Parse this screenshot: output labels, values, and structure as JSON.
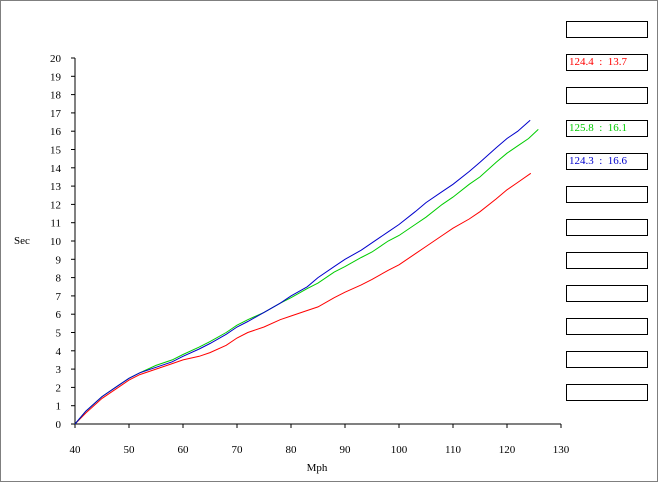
{
  "chart_data": {
    "type": "line",
    "title": "",
    "xlabel": "Mph",
    "ylabel": "Sec",
    "xlim": [
      40,
      130
    ],
    "ylim": [
      0,
      20
    ],
    "xticks": [
      40,
      50,
      60,
      70,
      80,
      90,
      100,
      110,
      120,
      130
    ],
    "yticks": [
      0,
      1,
      2,
      3,
      4,
      5,
      6,
      7,
      8,
      9,
      10,
      11,
      12,
      13,
      14,
      15,
      16,
      17,
      18,
      19,
      20
    ],
    "grid": false,
    "series": [
      {
        "color": "#ff0000",
        "x": [
          40,
          42,
          45,
          48,
          50,
          52,
          55,
          58,
          60,
          63,
          65,
          68,
          70,
          72,
          75,
          78,
          80,
          83,
          85,
          88,
          90,
          93,
          95,
          98,
          100,
          103,
          105,
          108,
          110,
          113,
          115,
          118,
          120,
          122,
          124.4
        ],
        "y": [
          0,
          0.6,
          1.4,
          2.0,
          2.4,
          2.7,
          3.0,
          3.3,
          3.5,
          3.7,
          3.9,
          4.3,
          4.7,
          5.0,
          5.3,
          5.7,
          5.9,
          6.2,
          6.4,
          6.9,
          7.2,
          7.6,
          7.9,
          8.4,
          8.7,
          9.3,
          9.7,
          10.3,
          10.7,
          11.2,
          11.6,
          12.3,
          12.8,
          13.2,
          13.7
        ]
      },
      {
        "color": "#00cc00",
        "x": [
          40,
          42,
          45,
          48,
          50,
          52,
          55,
          58,
          60,
          63,
          65,
          68,
          70,
          72,
          75,
          78,
          80,
          83,
          85,
          88,
          90,
          93,
          95,
          98,
          100,
          103,
          105,
          108,
          110,
          113,
          115,
          118,
          120,
          122,
          124,
          125.8
        ],
        "y": [
          0,
          0.7,
          1.5,
          2.1,
          2.5,
          2.8,
          3.2,
          3.5,
          3.8,
          4.2,
          4.5,
          5.0,
          5.4,
          5.7,
          6.1,
          6.6,
          6.9,
          7.4,
          7.7,
          8.3,
          8.6,
          9.1,
          9.4,
          10.0,
          10.3,
          10.9,
          11.3,
          12.0,
          12.4,
          13.1,
          13.5,
          14.3,
          14.8,
          15.2,
          15.6,
          16.1
        ]
      },
      {
        "color": "#0000cc",
        "x": [
          40,
          42,
          45,
          48,
          50,
          52,
          55,
          58,
          60,
          63,
          65,
          68,
          70,
          72,
          75,
          78,
          80,
          83,
          85,
          88,
          90,
          93,
          95,
          98,
          100,
          103,
          105,
          108,
          110,
          113,
          115,
          118,
          120,
          122,
          124.3
        ],
        "y": [
          0,
          0.7,
          1.5,
          2.1,
          2.5,
          2.8,
          3.1,
          3.4,
          3.7,
          4.1,
          4.4,
          4.9,
          5.3,
          5.6,
          6.1,
          6.6,
          7.0,
          7.5,
          8.0,
          8.6,
          9.0,
          9.5,
          9.9,
          10.5,
          10.9,
          11.6,
          12.1,
          12.7,
          13.1,
          13.8,
          14.3,
          15.1,
          15.6,
          16.0,
          16.6
        ]
      }
    ]
  },
  "readouts": [
    {
      "text": "",
      "color": "#000000"
    },
    {
      "text": "124.4  :  13.7",
      "color": "#ff0000"
    },
    {
      "text": "",
      "color": "#000000"
    },
    {
      "text": "125.8  :  16.1",
      "color": "#00cc00"
    },
    {
      "text": "124.3  :  16.6",
      "color": "#0000cc"
    },
    {
      "text": "",
      "color": "#000000"
    },
    {
      "text": "",
      "color": "#000000"
    },
    {
      "text": "",
      "color": "#000000"
    },
    {
      "text": "",
      "color": "#000000"
    },
    {
      "text": "",
      "color": "#000000"
    },
    {
      "text": "",
      "color": "#000000"
    },
    {
      "text": "",
      "color": "#000000"
    }
  ]
}
